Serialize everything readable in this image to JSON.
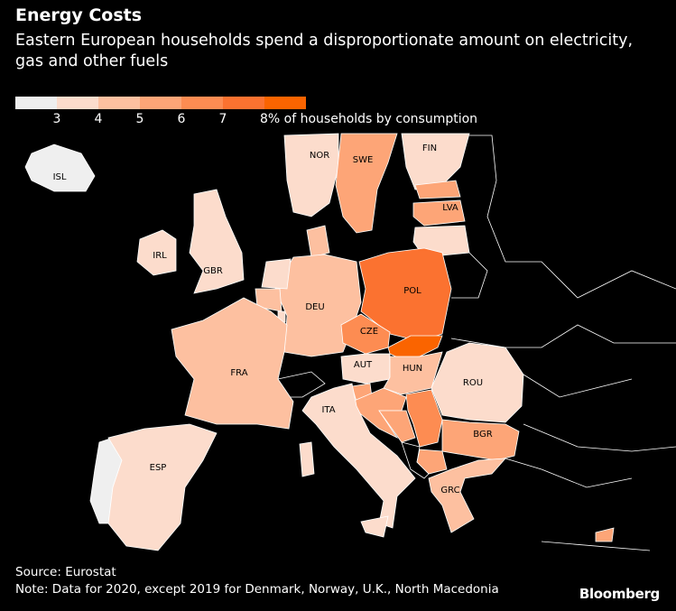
{
  "header": {
    "title": "Energy Costs",
    "subtitle": "Eastern European households spend a disproportionate amount on electricity, gas and other fuels"
  },
  "legend": {
    "colors": [
      "#efefef",
      "#fcdccc",
      "#fdc0a0",
      "#fda577",
      "#fd8c52",
      "#fb7230",
      "#fa6400"
    ],
    "ticks": [
      "3",
      "4",
      "5",
      "6",
      "7"
    ],
    "last_label": "8% of households by consumption",
    "bins": [
      3,
      4,
      5,
      6,
      7,
      8
    ]
  },
  "map": {
    "countries": [
      {
        "code": "ISL",
        "label": "ISL",
        "value": 2.5
      },
      {
        "code": "PRT",
        "label": "",
        "value": 2.5
      },
      {
        "code": "NOR",
        "label": "NOR",
        "value": 3.5
      },
      {
        "code": "SWE",
        "label": "SWE",
        "value": 5.5
      },
      {
        "code": "FIN",
        "label": "FIN",
        "value": 3.5
      },
      {
        "code": "EST",
        "label": "",
        "value": 5.5
      },
      {
        "code": "LVA",
        "label": "LVA",
        "value": 5.5
      },
      {
        "code": "LTU",
        "label": "",
        "value": 3.5
      },
      {
        "code": "IRL",
        "label": "IRL",
        "value": 3.5
      },
      {
        "code": "GBR",
        "label": "GBR",
        "value": 3.5
      },
      {
        "code": "DNK",
        "label": "",
        "value": 4.5
      },
      {
        "code": "DEU",
        "label": "DEU",
        "value": 4.5
      },
      {
        "code": "NLD",
        "label": "",
        "value": 3.5
      },
      {
        "code": "BEL",
        "label": "",
        "value": 4.5
      },
      {
        "code": "LUX",
        "label": "",
        "value": 3.5
      },
      {
        "code": "FRA",
        "label": "FRA",
        "value": 4.5
      },
      {
        "code": "POL",
        "label": "POL",
        "value": 7.5
      },
      {
        "code": "CZE",
        "label": "CZE",
        "value": 6.5
      },
      {
        "code": "SVK",
        "label": "",
        "value": 8.5
      },
      {
        "code": "AUT",
        "label": "AUT",
        "value": 3.5
      },
      {
        "code": "HUN",
        "label": "HUN",
        "value": 4.5
      },
      {
        "code": "SVN",
        "label": "",
        "value": 5.5
      },
      {
        "code": "HRV",
        "label": "",
        "value": 5.5
      },
      {
        "code": "BIH",
        "label": "",
        "value": 5.5
      },
      {
        "code": "SRB",
        "label": "",
        "value": 6.5
      },
      {
        "code": "ROU",
        "label": "ROU",
        "value": 3.5
      },
      {
        "code": "BGR",
        "label": "BGR",
        "value": 5.5
      },
      {
        "code": "MKD",
        "label": "",
        "value": 5.5
      },
      {
        "code": "GRC",
        "label": "GRC",
        "value": 4.5
      },
      {
        "code": "ITA",
        "label": "ITA",
        "value": 3.5
      },
      {
        "code": "ESP",
        "label": "ESP",
        "value": 3.5
      },
      {
        "code": "CYP",
        "label": "",
        "value": 5.5
      }
    ]
  },
  "footer": {
    "source": "Source: Eurostat",
    "note": "Note: Data for 2020, except 2019 for Denmark, Norway, U.K., North Macedonia",
    "logo": "Bloomberg"
  }
}
